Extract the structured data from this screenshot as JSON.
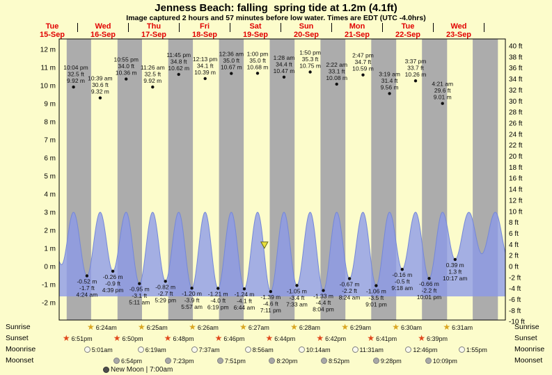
{
  "title": "Jenness Beach: falling  spring tide at 1.2m (4.1ft)",
  "subtitle": "Image captured 2 hours and 57 minutes before low water. Times are EDT (UTC -4.0hrs)",
  "days": [
    {
      "dow": "Tue",
      "date": "15-Sep"
    },
    {
      "dow": "Wed",
      "date": "16-Sep"
    },
    {
      "dow": "Thu",
      "date": "17-Sep"
    },
    {
      "dow": "Fri",
      "date": "18-Sep"
    },
    {
      "dow": "Sat",
      "date": "19-Sep"
    },
    {
      "dow": "Sun",
      "date": "20-Sep"
    },
    {
      "dow": "Mon",
      "date": "21-Sep"
    },
    {
      "dow": "Tue",
      "date": "22-Sep"
    },
    {
      "dow": "Wed",
      "date": "23-Sep"
    }
  ],
  "y_axis_left": {
    "unit": "m",
    "ticks": [
      12,
      11,
      10,
      9,
      8,
      7,
      6,
      5,
      4,
      3,
      2,
      1,
      0,
      -1,
      -2
    ]
  },
  "y_axis_right": {
    "unit": "ft",
    "ticks": [
      40,
      38,
      36,
      34,
      32,
      30,
      28,
      26,
      24,
      22,
      20,
      18,
      16,
      14,
      12,
      10,
      8,
      6,
      4,
      2,
      0,
      -2,
      -4,
      -6,
      -8,
      -10
    ]
  },
  "chart_data": {
    "type": "area",
    "title": "Jenness Beach tide curve, Tue 15-Sep to Wed 23-Sep",
    "ylabel_left": "height (m)",
    "ylabel_right": "height (ft)",
    "ylim_m": [
      -2,
      12
    ],
    "ylim_ft": [
      -10,
      40
    ],
    "legend_position": "none",
    "grid": false,
    "high_tides": [
      {
        "day": 0,
        "time": "10:04 pm",
        "ft": "32.5 ft",
        "m": "9.92 m"
      },
      {
        "day": 1,
        "time": "10:39 am",
        "ft": "30.6 ft",
        "m": "9.32 m"
      },
      {
        "day": 1,
        "time": "10:55 pm",
        "ft": "34.0 ft",
        "m": "10.36 m"
      },
      {
        "day": 2,
        "time": "11:26 am",
        "ft": "32.5 ft",
        "m": "9.92 m"
      },
      {
        "day": 2,
        "time": "11:45 pm",
        "ft": "34.8 ft",
        "m": "10.62 m"
      },
      {
        "day": 3,
        "time": "12:13 pm",
        "ft": "34.1 ft",
        "m": "10.39 m"
      },
      {
        "day": 4,
        "time": "12:36 am",
        "ft": "35.0 ft",
        "m": "10.67 m"
      },
      {
        "day": 4,
        "time": "1:00 pm",
        "ft": "35.0 ft",
        "m": "10.68 m"
      },
      {
        "day": 5,
        "time": "1:28 am",
        "ft": "34.4 ft",
        "m": "10.47 m"
      },
      {
        "day": 5,
        "time": "1:50 pm",
        "ft": "35.3 ft",
        "m": "10.75 m"
      },
      {
        "day": 6,
        "time": "2:22 am",
        "ft": "33.1 ft",
        "m": "10.08 m"
      },
      {
        "day": 6,
        "time": "2:47 pm",
        "ft": "34.7 ft",
        "m": "10.59 m"
      },
      {
        "day": 7,
        "time": "3:19 am",
        "ft": "31.4 ft",
        "m": "9.56 m"
      },
      {
        "day": 7,
        "time": "3:37 pm",
        "ft": "33.7 ft",
        "m": "10.26 m"
      },
      {
        "day": 8,
        "time": "4:21 am",
        "ft": "29.6 ft",
        "m": "9.01 m"
      }
    ],
    "low_tides": [
      {
        "day": 1,
        "time": "4:24 am",
        "m": "-0.52 m",
        "ft": "-1.7 ft"
      },
      {
        "day": 1,
        "time": "4:39 pm",
        "m": "-0.26 m",
        "ft": "-0.9 ft"
      },
      {
        "day": 2,
        "time": "5:11 am",
        "m": "-0.95 m",
        "ft": "-3.1 ft"
      },
      {
        "day": 2,
        "time": "5:29 pm",
        "m": "-0.82 m",
        "ft": "-2.7 ft"
      },
      {
        "day": 3,
        "time": "5:57 am",
        "m": "-1.20 m",
        "ft": "-3.9 ft"
      },
      {
        "day": 3,
        "time": "6:19 pm",
        "m": "-1.21 m",
        "ft": "-4.0 ft"
      },
      {
        "day": 4,
        "time": "6:44 am",
        "m": "-1.24 m",
        "ft": "-4.1 ft"
      },
      {
        "day": 4,
        "time": "7:11 pm",
        "m": "-1.39 m",
        "ft": "-4.6 ft"
      },
      {
        "day": 5,
        "time": "7:33 am",
        "m": "-1.05 m",
        "ft": "-3.4 ft"
      },
      {
        "day": 5,
        "time": "8:04 pm",
        "m": "-1.33 m",
        "ft": "-4.4 ft"
      },
      {
        "day": 6,
        "time": "8:24 am",
        "m": "-0.67 m",
        "ft": "-2.2 ft"
      },
      {
        "day": 6,
        "time": "9:01 pm",
        "m": "-1.06 m",
        "ft": "-3.5 ft"
      },
      {
        "day": 7,
        "time": "9:18 am",
        "m": "-0.16 m",
        "ft": "-0.5 ft"
      },
      {
        "day": 7,
        "time": "10:01 pm",
        "m": "-0.66 m",
        "ft": "-2.2 ft"
      },
      {
        "day": 8,
        "time": "10:17 am",
        "m": "0.39 m",
        "ft": "1.3 ft"
      }
    ],
    "current_marker": {
      "level_m": 1.2,
      "level_ft": 4.1,
      "minutes_before_low_water": 177
    }
  },
  "sun_moon": {
    "rows": [
      {
        "label": "Sunrise",
        "icon": "sunrise-star",
        "entries": [
          {
            "day": 1,
            "time": "6:24am"
          },
          {
            "day": 2,
            "time": "6:25am"
          },
          {
            "day": 3,
            "time": "6:26am"
          },
          {
            "day": 4,
            "time": "6:27am"
          },
          {
            "day": 5,
            "time": "6:28am"
          },
          {
            "day": 6,
            "time": "6:29am"
          },
          {
            "day": 7,
            "time": "6:30am"
          },
          {
            "day": 8,
            "time": "6:31am"
          }
        ]
      },
      {
        "label": "Sunset",
        "icon": "sunset-star",
        "entries": [
          {
            "day": 0,
            "time": "6:51pm"
          },
          {
            "day": 1,
            "time": "6:50pm"
          },
          {
            "day": 2,
            "time": "6:48pm"
          },
          {
            "day": 3,
            "time": "6:46pm"
          },
          {
            "day": 4,
            "time": "6:44pm"
          },
          {
            "day": 5,
            "time": "6:42pm"
          },
          {
            "day": 6,
            "time": "6:41pm"
          },
          {
            "day": 7,
            "time": "6:39pm"
          }
        ]
      },
      {
        "label": "Moonrise",
        "icon": "moonrise-circle",
        "entries": [
          {
            "day": 1,
            "time": "5:01am"
          },
          {
            "day": 2,
            "time": "6:19am"
          },
          {
            "day": 3,
            "time": "7:37am"
          },
          {
            "day": 4,
            "time": "8:56am"
          },
          {
            "day": 5,
            "time": "10:14am"
          },
          {
            "day": 6,
            "time": "11:31am"
          },
          {
            "day": 7,
            "time": "12:46pm"
          },
          {
            "day": 8,
            "time": "1:55pm"
          }
        ]
      },
      {
        "label": "Moonset",
        "icon": "moonset-circle",
        "entries": [
          {
            "day": 1,
            "time": "6:54pm"
          },
          {
            "day": 2,
            "time": "7:23pm"
          },
          {
            "day": 3,
            "time": "7:51pm"
          },
          {
            "day": 4,
            "time": "8:20pm"
          },
          {
            "day": 5,
            "time": "8:52pm"
          },
          {
            "day": 6,
            "time": "9:28pm"
          },
          {
            "day": 7,
            "time": "10:09pm"
          }
        ]
      }
    ],
    "legend": {
      "icon": "new-moon-circle",
      "label": "New Moon | 7:00am"
    }
  },
  "colors": {
    "background": "#FCFCCB",
    "night_band": "#ACACAC",
    "wave_fill": "#8A98E9",
    "wave_line": "#7487D8",
    "day_label": "#E10000",
    "sunrise_star": "#D9A520",
    "sunset_star": "#E0481C",
    "moonrise_fill": "#F8F8EE",
    "moonset_fill": "#A8A8A8",
    "new_moon_fill": "#4D4D4D",
    "marker_fill": "#E8E03C"
  }
}
